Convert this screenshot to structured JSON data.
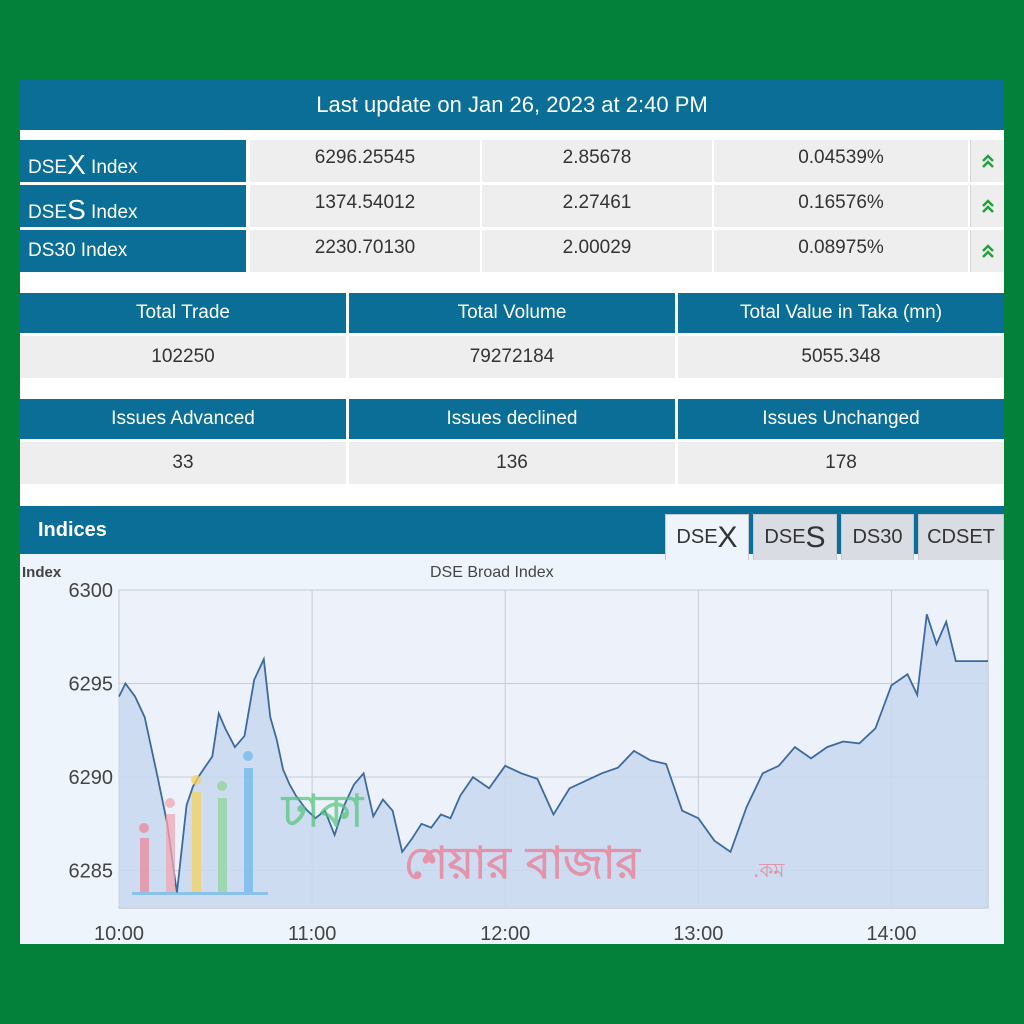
{
  "header": {
    "last_update": "Last update on Jan 26, 2023 at 2:40 PM"
  },
  "indices": [
    {
      "prefix": "DSE",
      "letter": "X",
      "suffix": " Index",
      "value": "6296.25545",
      "change": "2.85678",
      "percent": "0.04539%",
      "direction": "up"
    },
    {
      "prefix": "DSE",
      "letter": "S",
      "suffix": " Index",
      "value": "1374.54012",
      "change": "2.27461",
      "percent": "0.16576%",
      "direction": "up"
    },
    {
      "prefix": "DS30",
      "letter": "",
      "suffix": " Index",
      "value": "2230.70130",
      "change": "2.00029",
      "percent": "0.08975%",
      "direction": "up"
    }
  ],
  "trade_summary": {
    "headers": [
      "Total Trade",
      "Total Volume",
      "Total Value in Taka (mn)"
    ],
    "values": [
      "102250",
      "79272184",
      "5055.348"
    ]
  },
  "issues_summary": {
    "headers": [
      "Issues Advanced",
      "Issues declined",
      "Issues Unchanged"
    ],
    "values": [
      "33",
      "136",
      "178"
    ]
  },
  "indices_panel": {
    "title": "Indices",
    "tabs": [
      {
        "prefix": "DSE",
        "letter": "X",
        "active": true
      },
      {
        "prefix": "DSE",
        "letter": "S",
        "active": false
      },
      {
        "prefix": "DS30",
        "letter": "",
        "active": false
      },
      {
        "prefix": "CDSET",
        "letter": "",
        "active": false
      }
    ]
  },
  "watermark": {
    "line1": "ঢাকা",
    "line2": "শেয়ার বাজার",
    "suffix": ".কম"
  },
  "chart_data": {
    "type": "area",
    "title": "DSE Broad Index",
    "ylabel": "Index",
    "xlabel": "",
    "ylim": [
      6283,
      6300
    ],
    "xlim": [
      "10:00",
      "14:30"
    ],
    "x_ticks": [
      "10:00",
      "11:00",
      "12:00",
      "13:00",
      "14:00"
    ],
    "y_ticks": [
      6285,
      6290,
      6295,
      6300
    ],
    "grid": true,
    "colors": {
      "line": "#3d6a9c",
      "fill": "#c8d8ee",
      "accent": "#0a6e96",
      "up": "#22a03c"
    },
    "series": [
      {
        "x": [
          "10:00",
          "10:02",
          "10:05",
          "10:08",
          "10:12",
          "10:15",
          "10:18",
          "10:21",
          "10:23",
          "10:25",
          "10:27",
          "10:29",
          "10:31",
          "10:33",
          "10:36",
          "10:39",
          "10:42",
          "10:45",
          "10:47",
          "10:49",
          "10:51",
          "10:53",
          "10:55",
          "10:58",
          "11:01",
          "11:04",
          "11:07",
          "11:10",
          "11:13",
          "11:16",
          "11:19",
          "11:22",
          "11:25",
          "11:28",
          "11:31",
          "11:34",
          "11:37",
          "11:40",
          "11:43",
          "11:46",
          "11:50",
          "11:55",
          "12:00",
          "12:05",
          "12:10",
          "12:15",
          "12:20",
          "12:25",
          "12:30",
          "12:35",
          "12:40",
          "12:45",
          "12:50",
          "12:55",
          "13:00",
          "13:05",
          "13:10",
          "13:15",
          "13:20",
          "13:25",
          "13:30",
          "13:35",
          "13:40",
          "13:45",
          "13:50",
          "13:55",
          "14:00",
          "14:05",
          "14:08",
          "14:11",
          "14:14",
          "14:17",
          "14:20",
          "14:23",
          "14:30"
        ],
        "values": [
          6294.3,
          6295.0,
          6294.3,
          6293.2,
          6290.0,
          6287.5,
          6283.8,
          6288.5,
          6289.5,
          6290.1,
          6290.6,
          6291.1,
          6293.4,
          6292.6,
          6291.6,
          6292.2,
          6295.2,
          6296.3,
          6293.2,
          6292.0,
          6290.4,
          6289.6,
          6289.0,
          6288.3,
          6287.8,
          6288.2,
          6286.9,
          6288.5,
          6289.6,
          6290.2,
          6287.9,
          6288.8,
          6288.2,
          6286.0,
          6286.7,
          6287.5,
          6287.3,
          6288.0,
          6287.8,
          6289.0,
          6290.0,
          6289.4,
          6290.6,
          6290.2,
          6289.9,
          6288.0,
          6289.4,
          6289.8,
          6290.2,
          6290.5,
          6291.4,
          6290.9,
          6290.7,
          6288.2,
          6287.8,
          6286.6,
          6286.0,
          6288.4,
          6290.2,
          6290.6,
          6291.6,
          6291.0,
          6291.6,
          6291.9,
          6291.8,
          6292.6,
          6294.9,
          6295.5,
          6294.4,
          6298.7,
          6297.1,
          6298.3,
          6296.2,
          6296.2,
          6296.2
        ]
      }
    ]
  }
}
